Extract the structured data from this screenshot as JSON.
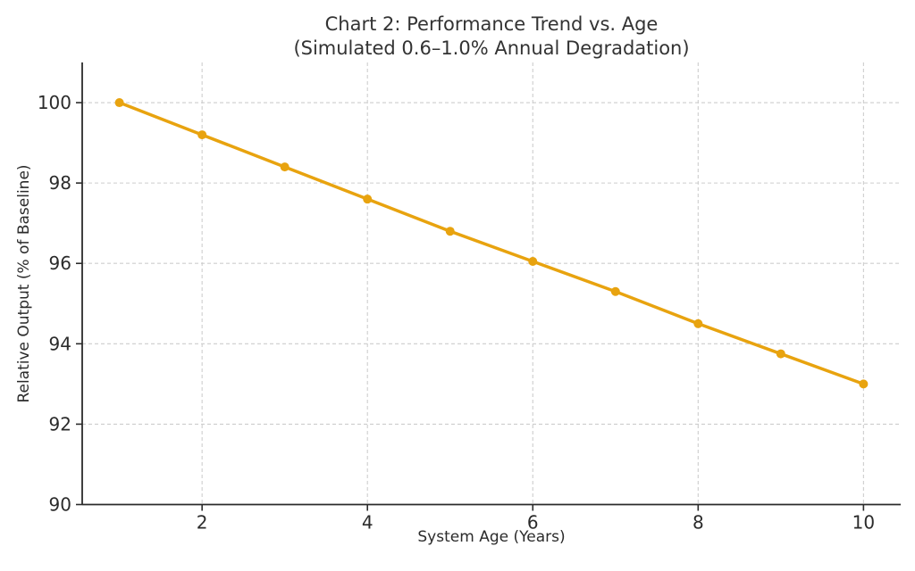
{
  "chart_title": {
    "line1": "Chart 2: Performance Trend vs. Age",
    "line2": "(Simulated 0.6–1.0% Annual Degradation)"
  },
  "chart_data": {
    "type": "line",
    "title": "Chart 2: Performance Trend vs. Age (Simulated 0.6–1.0% Annual Degradation)",
    "xlabel": "System Age (Years)",
    "ylabel": "Relative Output (% of Baseline)",
    "series": [
      {
        "name": "Relative Output",
        "x": [
          1,
          2,
          3,
          4,
          5,
          6,
          7,
          8,
          9,
          10
        ],
        "y": [
          100.0,
          99.2,
          98.4,
          97.6,
          96.8,
          96.05,
          95.3,
          94.5,
          93.75,
          93.0
        ]
      }
    ],
    "xticks": [
      2,
      4,
      6,
      8,
      10
    ],
    "yticks": [
      90,
      92,
      94,
      96,
      98,
      100
    ],
    "xlim": [
      0.55,
      10.45
    ],
    "ylim": [
      90,
      101
    ],
    "grid": true,
    "grid_style": "dashed",
    "legend_position": "none",
    "marker": "circle"
  },
  "colors": {
    "line": "#E8A30F",
    "marker": "#E8A30F",
    "grid": "#CDCDCD",
    "axis": "#2b2b2b",
    "title_text": "#333333",
    "background": "#FFFFFF"
  }
}
